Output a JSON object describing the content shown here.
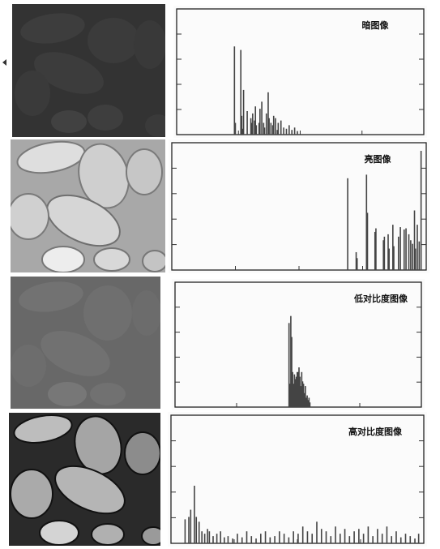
{
  "chart_data": [
    {
      "type": "bar",
      "title": "暗图像",
      "x": [
        52,
        53,
        59,
        60,
        61,
        62,
        66,
        70,
        71,
        72,
        74,
        75,
        76,
        79,
        80,
        82,
        84,
        85,
        87,
        89,
        90,
        92,
        94,
        95,
        97,
        99,
        100,
        103,
        106,
        109,
        112,
        115,
        118,
        121
      ],
      "values": [
        0.75,
        0.1,
        0.72,
        0.16,
        0.05,
        0.38,
        0.2,
        0.14,
        0.1,
        0.18,
        0.12,
        0.24,
        0.08,
        0.1,
        0.22,
        0.28,
        0.1,
        0.06,
        0.18,
        0.36,
        0.14,
        0.1,
        0.08,
        0.16,
        0.14,
        0.04,
        0.1,
        0.12,
        0.06,
        0.05,
        0.08,
        0.04,
        0.06,
        0.03
      ]
    },
    {
      "type": "bar",
      "title": "亮图像",
      "x": [
        176,
        185,
        186,
        196,
        197,
        205,
        206,
        214,
        215,
        219,
        220,
        224,
        225,
        230,
        232,
        236,
        238,
        241,
        243,
        245,
        247,
        248,
        250,
        252,
        254
      ],
      "values": [
        0.77,
        0.15,
        0.1,
        0.8,
        0.48,
        0.32,
        0.35,
        0.25,
        0.28,
        0.3,
        0.18,
        0.38,
        0.2,
        0.28,
        0.36,
        0.34,
        0.35,
        0.3,
        0.25,
        0.22,
        0.5,
        0.18,
        0.38,
        0.24,
        1.0
      ]
    },
    {
      "type": "bar",
      "title": "低对比度图像",
      "x": [
        114,
        115,
        116,
        117,
        118,
        119,
        120,
        121,
        122,
        123,
        124,
        125,
        126,
        127,
        128,
        129,
        130,
        131,
        132,
        133,
        134,
        135,
        136,
        137
      ],
      "values": [
        0.72,
        0.2,
        0.78,
        0.6,
        0.3,
        0.2,
        0.28,
        0.24,
        0.26,
        0.3,
        0.3,
        0.34,
        0.26,
        0.18,
        0.3,
        0.22,
        0.2,
        0.12,
        0.18,
        0.08,
        0.1,
        0.06,
        0.08,
        0.04
      ]
    },
    {
      "type": "bar",
      "title": "高对比度图像",
      "x": [
        4,
        8,
        10,
        14,
        16,
        19,
        22,
        25,
        28,
        30,
        34,
        38,
        42,
        46,
        50,
        55,
        60,
        65,
        70,
        75,
        80,
        85,
        90,
        95,
        100,
        105,
        110,
        115,
        120,
        125,
        130,
        135,
        140,
        145,
        150,
        155,
        160,
        165,
        170,
        175,
        180,
        185,
        190,
        195,
        200,
        205,
        210,
        215,
        220,
        225,
        230,
        235,
        240,
        245,
        250,
        254
      ],
      "values": [
        0.2,
        0.22,
        0.28,
        0.48,
        0.22,
        0.18,
        0.1,
        0.08,
        0.12,
        0.1,
        0.06,
        0.08,
        0.1,
        0.05,
        0.06,
        0.04,
        0.08,
        0.05,
        0.1,
        0.06,
        0.04,
        0.08,
        0.1,
        0.05,
        0.06,
        0.1,
        0.08,
        0.05,
        0.1,
        0.08,
        0.14,
        0.1,
        0.08,
        0.18,
        0.12,
        0.1,
        0.06,
        0.14,
        0.08,
        0.12,
        0.06,
        0.1,
        0.12,
        0.08,
        0.14,
        0.06,
        0.12,
        0.08,
        0.14,
        0.06,
        0.1,
        0.05,
        0.08,
        0.06,
        0.04,
        0.08
      ]
    }
  ]
}
